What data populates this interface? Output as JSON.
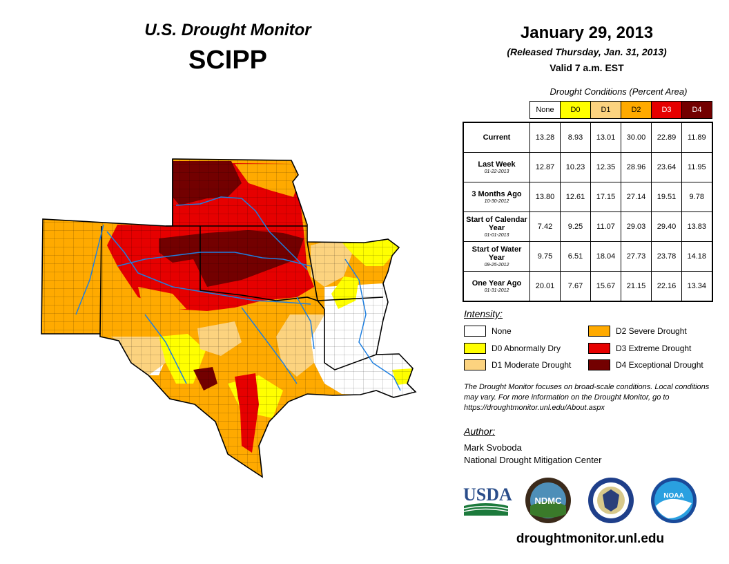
{
  "title": "U.S. Drought Monitor",
  "region": "SCIPP",
  "date": "January 29, 2013",
  "released": "(Released Thursday, Jan. 31, 2013)",
  "valid": "Valid 7 a.m. EST",
  "table": {
    "caption": "Drought Conditions (Percent Area)",
    "columns": [
      "None",
      "D0",
      "D1",
      "D2",
      "D3",
      "D4"
    ],
    "rows": [
      {
        "label": "Current",
        "date": "",
        "values": [
          "13.28",
          "8.93",
          "13.01",
          "30.00",
          "22.89",
          "11.89"
        ]
      },
      {
        "label": "Last Week",
        "date": "01-22-2013",
        "values": [
          "12.87",
          "10.23",
          "12.35",
          "28.96",
          "23.64",
          "11.95"
        ]
      },
      {
        "label": "3 Months Ago",
        "date": "10-30-2012",
        "values": [
          "13.80",
          "12.61",
          "17.15",
          "27.14",
          "19.51",
          "9.78"
        ]
      },
      {
        "label": "Start of Calendar Year",
        "date": "01-01-2013",
        "values": [
          "7.42",
          "9.25",
          "11.07",
          "29.03",
          "29.40",
          "13.83"
        ]
      },
      {
        "label": "Start of Water Year",
        "date": "09-25-2012",
        "values": [
          "9.75",
          "6.51",
          "18.04",
          "27.73",
          "23.78",
          "14.18"
        ]
      },
      {
        "label": "One Year Ago",
        "date": "01-31-2012",
        "values": [
          "20.01",
          "7.67",
          "15.67",
          "21.15",
          "22.16",
          "13.34"
        ]
      }
    ]
  },
  "intensity": {
    "title": "Intensity:",
    "items": [
      {
        "label": "None",
        "color": "#ffffff"
      },
      {
        "label": "D0 Abnormally Dry",
        "color": "#ffff00"
      },
      {
        "label": "D1 Moderate Drought",
        "color": "#fcd37f"
      },
      {
        "label": "D2 Severe Drought",
        "color": "#ffaa00"
      },
      {
        "label": "D3 Extreme Drought",
        "color": "#e60000"
      },
      {
        "label": "D4 Exceptional Drought",
        "color": "#730000"
      }
    ]
  },
  "note": "The Drought Monitor focuses on broad-scale conditions. Local conditions may vary. For more information on the Drought Monitor, go to https://droughtmonitor.unl.edu/About.aspx",
  "author": {
    "label": "Author:",
    "name": "Mark Svoboda",
    "org": "National Drought Mitigation Center"
  },
  "logos": {
    "usda": "USDA",
    "ndmc": "NDMC",
    "noaa": "NOAA"
  },
  "website": "droughtmonitor.unl.edu"
}
